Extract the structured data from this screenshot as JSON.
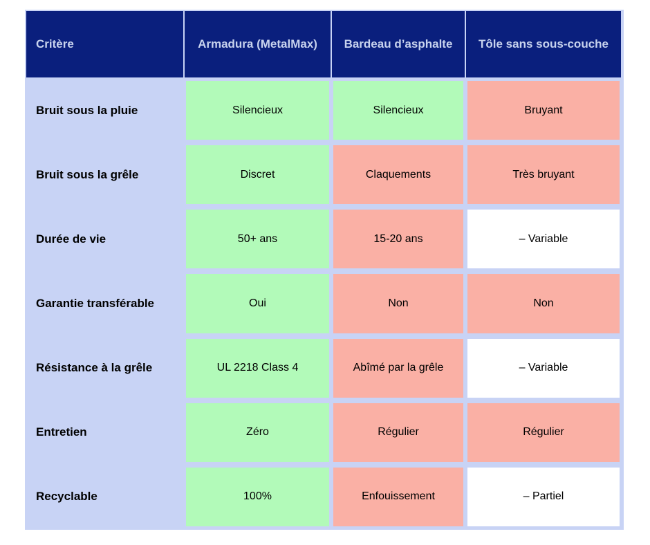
{
  "colors": {
    "header_bg": "#0a1f7d",
    "header_text": "#c8d3ee",
    "frame": "#c8d3f5",
    "positive": "#b2fab9",
    "negative": "#fab0a5",
    "neutral": "#ffffff"
  },
  "table": {
    "columns": [
      {
        "label": "Critère"
      },
      {
        "label": "Armadura (MetalMax)"
      },
      {
        "label": "Bardeau d’asphalte"
      },
      {
        "label": "Tôle sans sous-couche"
      }
    ],
    "rows": [
      {
        "label": "Bruit sous la pluie",
        "cells": [
          {
            "text": "Silencieux",
            "status": "good"
          },
          {
            "text": "Silencieux",
            "status": "good"
          },
          {
            "text": "Bruyant",
            "status": "bad"
          }
        ]
      },
      {
        "label": "Bruit sous la grêle",
        "cells": [
          {
            "text": "Discret",
            "status": "good"
          },
          {
            "text": "Claquements",
            "status": "bad"
          },
          {
            "text": "Très bruyant",
            "status": "bad"
          }
        ]
      },
      {
        "label": "Durée de vie",
        "cells": [
          {
            "text": "50+ ans",
            "status": "good"
          },
          {
            "text": "15-20 ans",
            "status": "bad"
          },
          {
            "text": "– Variable",
            "status": "neutral"
          }
        ]
      },
      {
        "label": "Garantie transférable",
        "cells": [
          {
            "text": "Oui",
            "status": "good"
          },
          {
            "text": "Non",
            "status": "bad"
          },
          {
            "text": "Non",
            "status": "bad"
          }
        ]
      },
      {
        "label": "Résistance à la grêle",
        "cells": [
          {
            "text": "UL 2218 Class 4",
            "status": "good"
          },
          {
            "text": "Abîmé par la grêle",
            "status": "bad"
          },
          {
            "text": "– Variable",
            "status": "neutral"
          }
        ]
      },
      {
        "label": "Entretien",
        "cells": [
          {
            "text": "Zéro",
            "status": "good"
          },
          {
            "text": "Régulier",
            "status": "bad"
          },
          {
            "text": "Régulier",
            "status": "bad"
          }
        ]
      },
      {
        "label": "Recyclable",
        "cells": [
          {
            "text": "100%",
            "status": "good"
          },
          {
            "text": "Enfouissement",
            "status": "bad"
          },
          {
            "text": "– Partiel",
            "status": "neutral"
          }
        ]
      }
    ]
  },
  "chart_data": {
    "type": "table",
    "title": "",
    "columns": [
      "Critère",
      "Armadura (MetalMax)",
      "Bardeau d’asphalte",
      "Tôle sans sous-couche"
    ],
    "rows": [
      [
        "Bruit sous la pluie",
        "Silencieux",
        "Silencieux",
        "Bruyant"
      ],
      [
        "Bruit sous la grêle",
        "Discret",
        "Claquements",
        "Très bruyant"
      ],
      [
        "Durée de vie",
        "50+ ans",
        "15-20 ans",
        "– Variable"
      ],
      [
        "Garantie transférable",
        "Oui",
        "Non",
        "Non"
      ],
      [
        "Résistance à la grêle",
        "UL 2218 Class 4",
        "Abîmé par la grêle",
        "– Variable"
      ],
      [
        "Entretien",
        "Zéro",
        "Régulier",
        "Régulier"
      ],
      [
        "Recyclable",
        "100%",
        "Enfouissement",
        "– Partiel"
      ]
    ],
    "cell_status": [
      [
        "label",
        "good",
        "good",
        "bad"
      ],
      [
        "label",
        "good",
        "bad",
        "bad"
      ],
      [
        "label",
        "good",
        "bad",
        "neutral"
      ],
      [
        "label",
        "good",
        "bad",
        "bad"
      ],
      [
        "label",
        "good",
        "bad",
        "neutral"
      ],
      [
        "label",
        "good",
        "bad",
        "bad"
      ],
      [
        "label",
        "good",
        "bad",
        "neutral"
      ]
    ],
    "legend": {
      "good": "#b2fab9",
      "bad": "#fab0a5",
      "neutral": "#ffffff"
    }
  }
}
